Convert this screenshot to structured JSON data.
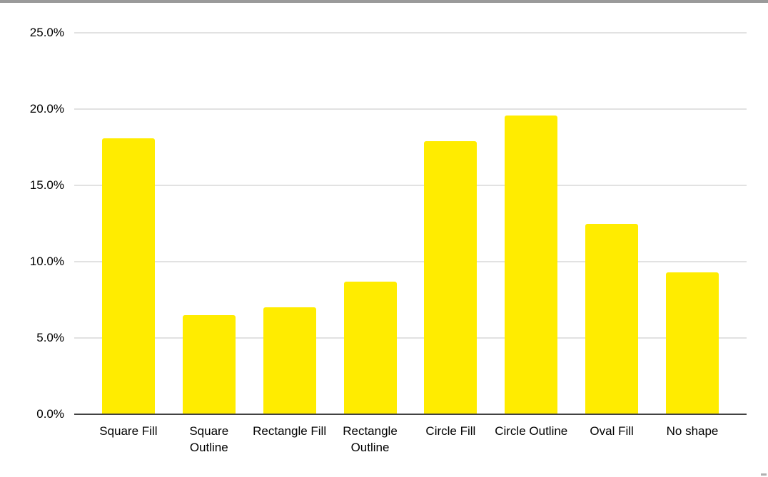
{
  "window": {
    "top_edge_color": "#9a9a9a",
    "corner_mark_color": "#b0b0b0"
  },
  "chart_data": {
    "type": "bar",
    "title": "",
    "categories": [
      "Square Fill",
      "Square Outline",
      "Rectangle Fill",
      "Rectangle Outline",
      "Circle Fill",
      "Circle Outline",
      "Oval Fill",
      "No shape"
    ],
    "values": [
      18.1,
      6.5,
      7.0,
      8.7,
      17.9,
      19.6,
      12.5,
      9.3
    ],
    "value_unit": "%",
    "xlabel": "",
    "ylabel": "",
    "ylim": [
      0,
      25
    ],
    "y_tick_values": [
      0,
      5,
      10,
      15,
      20,
      25
    ],
    "y_tick_labels": [
      "0.0%",
      "5.0%",
      "10.0%",
      "15.0%",
      "20.0%",
      "25.0%"
    ],
    "grid": true,
    "legend": "none",
    "bar_color": "#ffec00",
    "gridline_color": "#e2e2e2",
    "axis_line_color": "#424242",
    "text_color": "#000000"
  }
}
